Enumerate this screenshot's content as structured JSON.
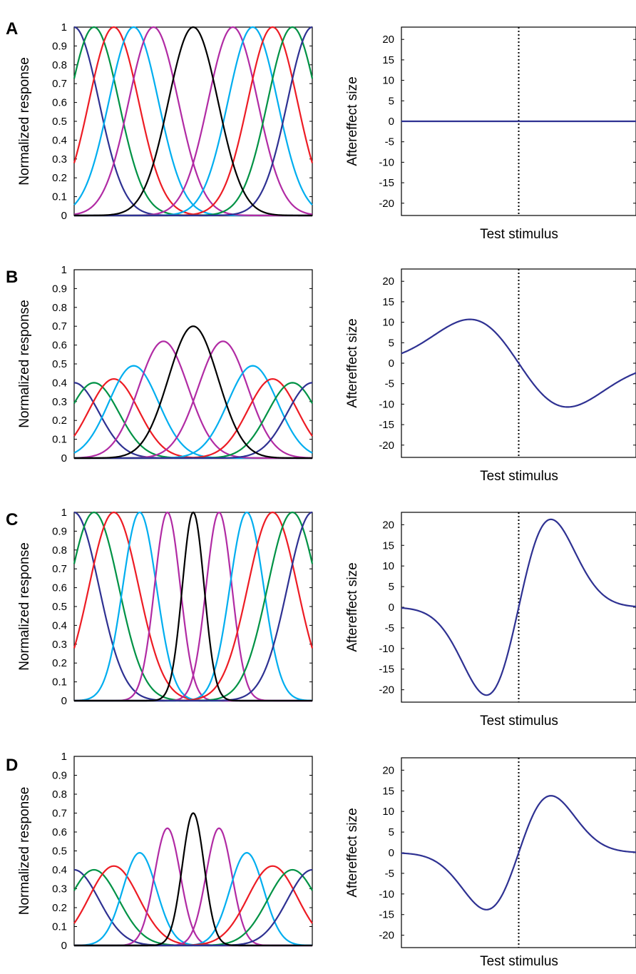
{
  "palette": {
    "blue": "#2E3192",
    "green": "#009245",
    "red": "#ED1C24",
    "cyan": "#00AEEF",
    "magenta": "#B12BA4",
    "black": "#000000"
  },
  "chart_data": [
    {
      "panel": "A",
      "type": "line",
      "title": "",
      "ylabel": "Normalized response",
      "xlabel": "",
      "ylim": [
        0,
        1
      ],
      "yticks": [
        "0",
        "0.1",
        "0.2",
        "0.3",
        "0.4",
        "0.5",
        "0.6",
        "0.7",
        "0.8",
        "0.9",
        "1"
      ],
      "x_range": [
        -6,
        6
      ],
      "series": [
        {
          "color": "blue",
          "center": -6,
          "peak": 1.0,
          "width": 1.25
        },
        {
          "color": "green",
          "center": -5,
          "peak": 1.0,
          "width": 1.25
        },
        {
          "color": "red",
          "center": -4,
          "peak": 1.0,
          "width": 1.25
        },
        {
          "color": "cyan",
          "center": -3,
          "peak": 1.0,
          "width": 1.25
        },
        {
          "color": "magenta",
          "center": -2,
          "peak": 1.0,
          "width": 1.25
        },
        {
          "color": "magenta",
          "center": 2,
          "peak": 1.0,
          "width": 1.25
        },
        {
          "color": "cyan",
          "center": 3,
          "peak": 1.0,
          "width": 1.25
        },
        {
          "color": "red",
          "center": 4,
          "peak": 1.0,
          "width": 1.25
        },
        {
          "color": "green",
          "center": 5,
          "peak": 1.0,
          "width": 1.25
        },
        {
          "color": "blue",
          "center": 6,
          "peak": 1.0,
          "width": 1.25
        },
        {
          "color": "black",
          "center": 0,
          "peak": 1.0,
          "width": 1.25
        }
      ]
    },
    {
      "panel": "A",
      "type": "line",
      "title": "",
      "ylabel": "Aftereffect size",
      "xlabel": "Test stimulus",
      "ylim": [
        -23,
        23
      ],
      "yticks": [
        "20",
        "15",
        "10",
        "5",
        "0",
        "-5",
        "-10",
        "-15",
        "-20"
      ],
      "x_range": [
        -6,
        6
      ],
      "reference_line_x": 0,
      "curve": {
        "kind": "flat",
        "amplitude": 0
      }
    },
    {
      "panel": "B",
      "type": "line",
      "title": "",
      "ylabel": "Normalized response",
      "xlabel": "",
      "ylim": [
        0,
        1
      ],
      "yticks": [
        "0",
        "0.1",
        "0.2",
        "0.3",
        "0.4",
        "0.5",
        "0.6",
        "0.7",
        "0.8",
        "0.9",
        "1"
      ],
      "x_range": [
        -6,
        6
      ],
      "series": [
        {
          "color": "blue",
          "center": -6,
          "peak": 0.4,
          "width": 1.25
        },
        {
          "color": "green",
          "center": -5,
          "peak": 0.4,
          "width": 1.25
        },
        {
          "color": "red",
          "center": -4,
          "peak": 0.42,
          "width": 1.25
        },
        {
          "color": "cyan",
          "center": -3,
          "peak": 0.49,
          "width": 1.25
        },
        {
          "color": "magenta",
          "center": -1.5,
          "peak": 0.62,
          "width": 1.25
        },
        {
          "color": "magenta",
          "center": 1.5,
          "peak": 0.62,
          "width": 1.25
        },
        {
          "color": "cyan",
          "center": 3,
          "peak": 0.49,
          "width": 1.25
        },
        {
          "color": "red",
          "center": 4,
          "peak": 0.42,
          "width": 1.25
        },
        {
          "color": "green",
          "center": 5,
          "peak": 0.4,
          "width": 1.25
        },
        {
          "color": "blue",
          "center": 6,
          "peak": 0.4,
          "width": 1.25
        },
        {
          "color": "black",
          "center": 0,
          "peak": 0.7,
          "width": 1.25
        }
      ]
    },
    {
      "panel": "B",
      "type": "line",
      "title": "",
      "ylabel": "Aftereffect size",
      "xlabel": "Test stimulus",
      "ylim": [
        -23,
        23
      ],
      "yticks": [
        "20",
        "15",
        "10",
        "5",
        "0",
        "-5",
        "-10",
        "-15",
        "-20"
      ],
      "x_range": [
        -6,
        6
      ],
      "reference_line_x": 0,
      "curve": {
        "kind": "gaussian-derivative",
        "amplitude": 10.7,
        "sigma": 2.5
      }
    },
    {
      "panel": "C",
      "type": "line",
      "title": "",
      "ylabel": "Normalized response",
      "xlabel": "",
      "ylim": [
        0,
        1
      ],
      "yticks": [
        "0",
        "0.1",
        "0.2",
        "0.3",
        "0.4",
        "0.5",
        "0.6",
        "0.7",
        "0.8",
        "0.9",
        "1"
      ],
      "x_range": [
        -6,
        6
      ],
      "series": [
        {
          "color": "blue",
          "center": -6,
          "peak": 1.0,
          "width": 1.25
        },
        {
          "color": "green",
          "center": -5,
          "peak": 1.0,
          "width": 1.25
        },
        {
          "color": "red",
          "center": -4,
          "peak": 1.0,
          "width": 1.25
        },
        {
          "color": "cyan",
          "center": -2.7,
          "peak": 1.0,
          "width": 0.85
        },
        {
          "color": "magenta",
          "center": -1.3,
          "peak": 1.0,
          "width": 0.65
        },
        {
          "color": "magenta",
          "center": 1.3,
          "peak": 1.0,
          "width": 0.65
        },
        {
          "color": "cyan",
          "center": 2.7,
          "peak": 1.0,
          "width": 0.85
        },
        {
          "color": "red",
          "center": 4,
          "peak": 1.0,
          "width": 1.25
        },
        {
          "color": "green",
          "center": 5,
          "peak": 1.0,
          "width": 1.25
        },
        {
          "color": "blue",
          "center": 6,
          "peak": 1.0,
          "width": 1.25
        },
        {
          "color": "black",
          "center": 0,
          "peak": 1.0,
          "width": 0.55
        }
      ]
    },
    {
      "panel": "C",
      "type": "line",
      "title": "",
      "ylabel": "Aftereffect size",
      "xlabel": "Test stimulus",
      "ylim": [
        -23,
        23
      ],
      "yticks": [
        "20",
        "15",
        "10",
        "5",
        "0",
        "-5",
        "-10",
        "-15",
        "-20"
      ],
      "x_range": [
        -6,
        6
      ],
      "reference_line_x": 0,
      "curve": {
        "kind": "gaussian-derivative",
        "amplitude": 21.3,
        "sigma": 1.65,
        "sign": -1
      }
    },
    {
      "panel": "D",
      "type": "line",
      "title": "",
      "ylabel": "Normalized response",
      "xlabel": "",
      "ylim": [
        0,
        1
      ],
      "yticks": [
        "0",
        "0.1",
        "0.2",
        "0.3",
        "0.4",
        "0.5",
        "0.6",
        "0.7",
        "0.8",
        "0.9",
        "1"
      ],
      "x_range": [
        -6,
        6
      ],
      "series": [
        {
          "color": "blue",
          "center": -6,
          "peak": 0.4,
          "width": 1.25
        },
        {
          "color": "green",
          "center": -5,
          "peak": 0.4,
          "width": 1.25
        },
        {
          "color": "red",
          "center": -4,
          "peak": 0.42,
          "width": 1.25
        },
        {
          "color": "cyan",
          "center": -2.7,
          "peak": 0.49,
          "width": 0.85
        },
        {
          "color": "magenta",
          "center": -1.3,
          "peak": 0.62,
          "width": 0.65
        },
        {
          "color": "magenta",
          "center": 1.3,
          "peak": 0.62,
          "width": 0.65
        },
        {
          "color": "cyan",
          "center": 2.7,
          "peak": 0.49,
          "width": 0.85
        },
        {
          "color": "red",
          "center": 4,
          "peak": 0.42,
          "width": 1.25
        },
        {
          "color": "green",
          "center": 5,
          "peak": 0.4,
          "width": 1.25
        },
        {
          "color": "blue",
          "center": 6,
          "peak": 0.4,
          "width": 1.25
        },
        {
          "color": "black",
          "center": 0,
          "peak": 0.7,
          "width": 0.55
        }
      ]
    },
    {
      "panel": "D",
      "type": "line",
      "title": "",
      "ylabel": "Aftereffect size",
      "xlabel": "Test stimulus",
      "ylim": [
        -23,
        23
      ],
      "yticks": [
        "20",
        "15",
        "10",
        "5",
        "0",
        "-5",
        "-10",
        "-15",
        "-20"
      ],
      "x_range": [
        -6,
        6
      ],
      "reference_line_x": 0,
      "curve": {
        "kind": "gaussian-derivative",
        "amplitude": 13.8,
        "sigma": 1.65,
        "sign": -1
      }
    }
  ]
}
